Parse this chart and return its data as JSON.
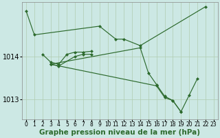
{
  "background_color": "#cce8e4",
  "plot_bg_color": "#cce8e4",
  "line_color": "#2d6a2d",
  "marker": "D",
  "marker_size": 2.5,
  "grid_color": "#b0ccb0",
  "xlabel": "Graphe pression niveau de la mer (hPa)",
  "xlabel_fontsize": 7.5,
  "ytick_fontsize": 7,
  "xtick_fontsize": 5.5,
  "ylim": [
    1012.55,
    1015.25
  ],
  "xlim": [
    -0.5,
    23.5
  ],
  "yticks": [
    1013,
    1014
  ],
  "xticks": [
    0,
    1,
    2,
    3,
    4,
    5,
    6,
    7,
    8,
    9,
    10,
    11,
    12,
    13,
    14,
    15,
    16,
    17,
    18,
    19,
    20,
    21,
    22,
    23
  ],
  "series": [
    {
      "x": [
        0,
        1,
        9,
        11,
        12,
        14,
        22
      ],
      "y": [
        1015.05,
        1014.5,
        1014.7,
        1014.4,
        1014.4,
        1014.25,
        1015.15
      ]
    },
    {
      "x": [
        2,
        3,
        4,
        5,
        6,
        7,
        8
      ],
      "y": [
        1014.05,
        1013.87,
        1013.82,
        1014.05,
        1014.1,
        1014.1,
        1014.12
      ]
    },
    {
      "x": [
        3,
        4,
        6,
        7,
        8
      ],
      "y": [
        1013.82,
        1013.78,
        1014.0,
        1014.05,
        1014.05
      ]
    },
    {
      "x": [
        3,
        14,
        15,
        16,
        17,
        18,
        19,
        20,
        21
      ],
      "y": [
        1013.82,
        1014.2,
        1013.62,
        1013.35,
        1013.08,
        1012.98,
        1012.72,
        1013.1,
        1013.48
      ]
    },
    {
      "x": [
        3,
        16,
        17,
        18,
        19
      ],
      "y": [
        1013.82,
        1013.32,
        1013.05,
        1012.98,
        1012.72
      ]
    }
  ]
}
